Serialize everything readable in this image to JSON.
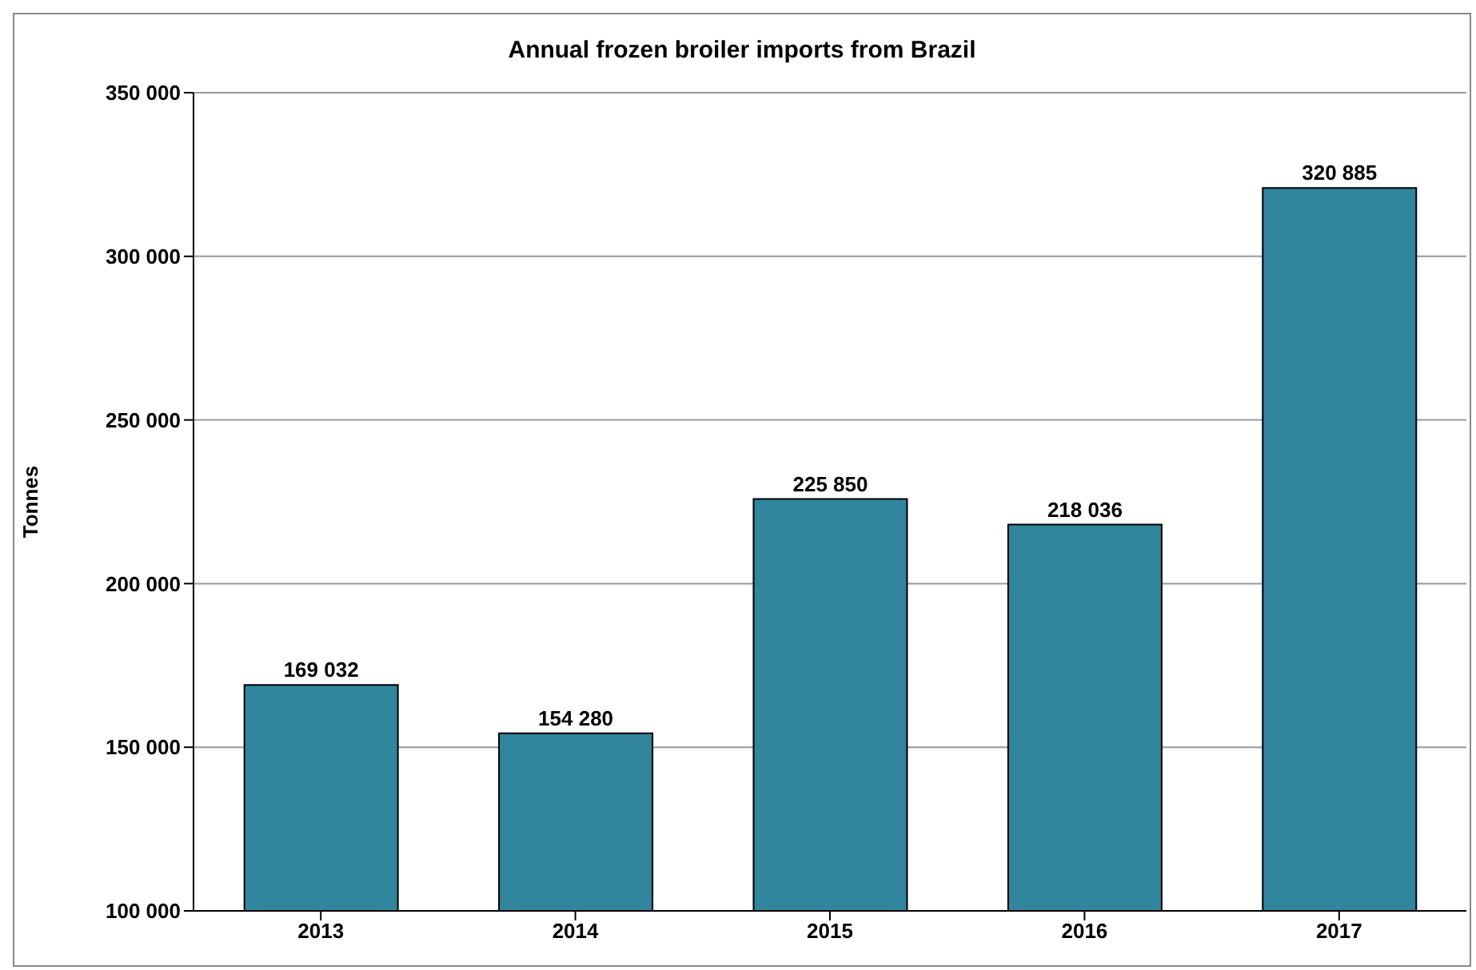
{
  "chart_data": {
    "type": "bar",
    "title": "Annual frozen broiler imports from Brazil",
    "ylabel": "Tonnes",
    "categories": [
      "2013",
      "2014",
      "2015",
      "2016",
      "2017"
    ],
    "values": [
      169032,
      154280,
      225850,
      218036,
      320885
    ],
    "value_labels": [
      "169 032",
      "154 280",
      "225 850",
      "218 036",
      "320 885"
    ],
    "color": "#31859c",
    "ylim": [
      100000,
      350000
    ],
    "yticks": [
      {
        "value": 100000,
        "label": "100 000"
      },
      {
        "value": 150000,
        "label": "150 000"
      },
      {
        "value": 200000,
        "label": "200 000"
      },
      {
        "value": 250000,
        "label": "250 000"
      },
      {
        "value": 300000,
        "label": "300 000"
      },
      {
        "value": 350000,
        "label": "350 000"
      }
    ],
    "grid": "y"
  }
}
